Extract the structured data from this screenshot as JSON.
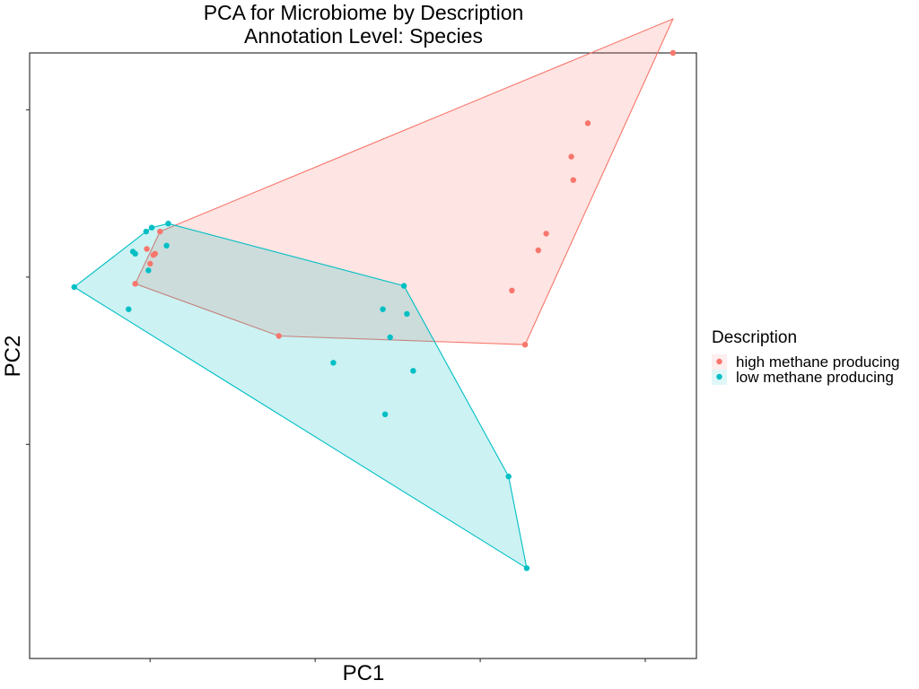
{
  "chart_data": {
    "type": "scatter",
    "title": "PCA for Microbiome by Description",
    "subtitle": "Annotation Level: Species",
    "xlabel": "PC1",
    "ylabel": "PC2",
    "xlim": [
      -3.65,
      16.55
    ],
    "ylim": [
      -5.7,
      3.35
    ],
    "x_ticks": [
      0,
      5,
      10,
      15
    ],
    "y_ticks": [
      -2.5,
      0,
      2.5
    ],
    "tick_labels_visible": false,
    "grid": false,
    "hulls": true,
    "legend": {
      "title": "Description",
      "placement": "right"
    },
    "series": [
      {
        "name": "high methane producing",
        "color": "#F8766D",
        "points": [
          [
            15.84,
            3.86
          ],
          [
            13.26,
            2.3
          ],
          [
            12.76,
            1.8
          ],
          [
            12.82,
            1.45
          ],
          [
            12.0,
            0.65
          ],
          [
            11.76,
            0.4
          ],
          [
            10.96,
            -0.2
          ],
          [
            11.36,
            -1.01
          ],
          [
            3.9,
            -0.88
          ],
          [
            -0.45,
            -0.1
          ],
          [
            0.3,
            0.68
          ],
          [
            -0.1,
            0.42
          ],
          [
            0.0,
            0.2
          ],
          [
            0.1,
            0.33
          ],
          [
            0.15,
            0.35
          ]
        ],
        "hull_order": [
          0,
          7,
          8,
          9,
          10
        ]
      },
      {
        "name": "low methane producing",
        "color": "#00BFC4",
        "points": [
          [
            -2.3,
            -0.15
          ],
          [
            -0.65,
            -0.48
          ],
          [
            -0.52,
            0.38
          ],
          [
            -0.45,
            0.35
          ],
          [
            -0.12,
            0.68
          ],
          [
            0.05,
            0.74
          ],
          [
            0.55,
            0.8
          ],
          [
            0.5,
            0.47
          ],
          [
            -0.05,
            0.1
          ],
          [
            7.69,
            -0.13
          ],
          [
            7.05,
            -0.48
          ],
          [
            7.78,
            -0.55
          ],
          [
            7.27,
            -0.9
          ],
          [
            5.55,
            -1.28
          ],
          [
            7.97,
            -1.4
          ],
          [
            7.12,
            -2.05
          ],
          [
            10.86,
            -2.98
          ],
          [
            11.41,
            -4.35
          ]
        ],
        "hull_order": [
          0,
          17,
          16,
          9,
          6,
          5,
          4
        ]
      }
    ]
  }
}
